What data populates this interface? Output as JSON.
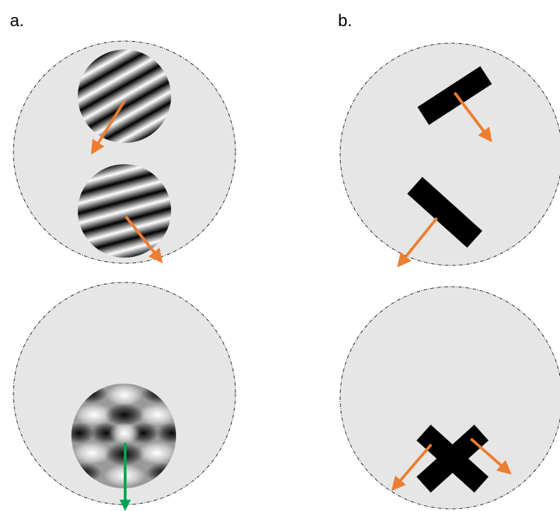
{
  "panels": {
    "a": {
      "label": "a."
    },
    "b": {
      "label": "b."
    }
  },
  "colors": {
    "background_circle": "#e6e6e6",
    "circle_outline": "#222222",
    "component_arrow": "#ed7d31",
    "pattern_arrow": "#00a651",
    "bar_fill": "#000000",
    "grating_dark": "#000000",
    "grating_light": "#ffffff"
  }
}
